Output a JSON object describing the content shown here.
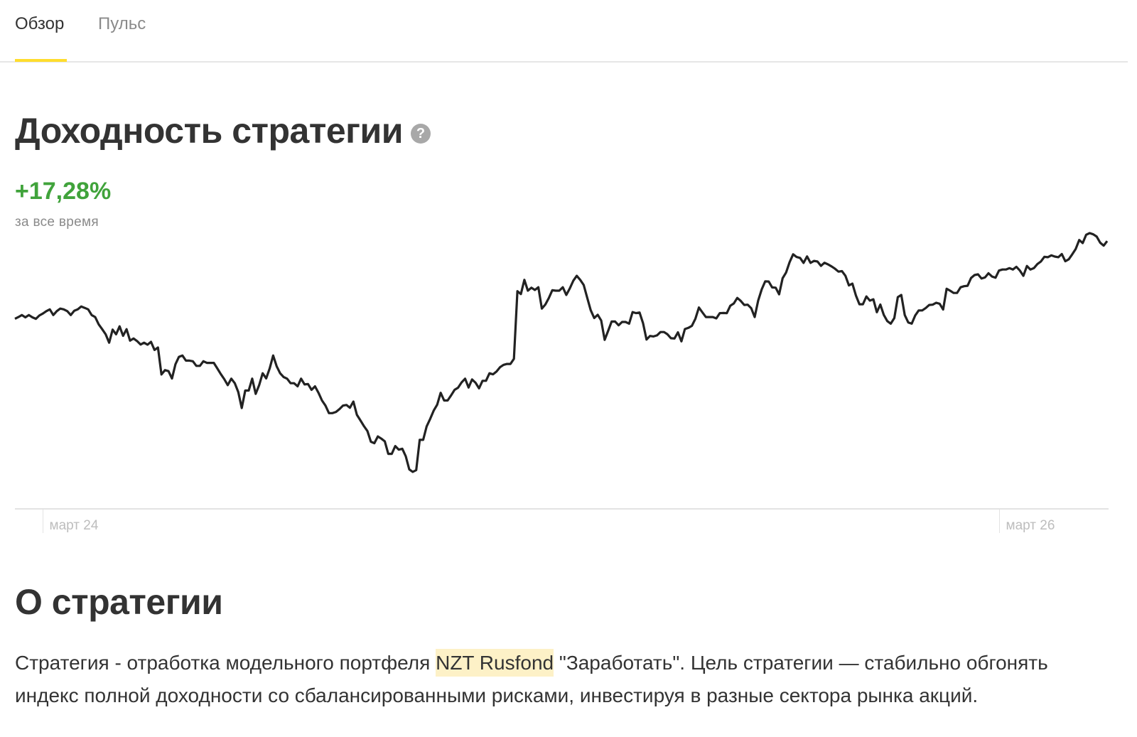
{
  "tabs": [
    {
      "label": "Обзор",
      "active": true
    },
    {
      "label": "Пульс",
      "active": false
    }
  ],
  "colors": {
    "accent_yellow": "#ffdd2d",
    "positive_green": "#40a33b",
    "highlight": "#fdf1c7",
    "text": "#333333",
    "muted": "#8a8a8a"
  },
  "returns": {
    "title": "Доходность стратегии",
    "help_icon": "question-circle-icon",
    "help_glyph": "?",
    "value": "+17,28%",
    "caption": "за все время"
  },
  "chart_data": {
    "type": "line",
    "title": "",
    "xlabel": "",
    "ylabel": "",
    "grid": false,
    "legend": "none",
    "x_tick_labels": [
      "март 24",
      "март 26"
    ],
    "x_ticks_at_index": [
      8,
      282
    ],
    "series": [
      {
        "color": "#222222",
        "values": [
          60.6,
          61.8,
          63.1,
          61.6,
          63.1,
          61.6,
          60.6,
          62.8,
          64.1,
          65.7,
          66.9,
          63.1,
          65.7,
          67.4,
          66.9,
          65.7,
          63.1,
          66.0,
          66.9,
          68.8,
          67.9,
          66.9,
          63.1,
          61.8,
          56.9,
          53.7,
          50.3,
          44.7,
          53.4,
          50.3,
          55.6,
          49.3,
          53.7,
          46.1,
          47.5,
          45.8,
          43.5,
          44.7,
          43.4,
          45.3,
          39.9,
          41.5,
          23.6,
          26.5,
          25.8,
          20.9,
          30.4,
          35.3,
          36.2,
          32.8,
          32.8,
          32.4,
          29.3,
          29.3,
          32.4,
          31.3,
          31.3,
          31.3,
          27.6,
          23.9,
          20.5,
          16.5,
          20.8,
          17.8,
          11.9,
          1.3,
          12.9,
          12.9,
          20.8,
          10.7,
          16.5,
          24.4,
          21.0,
          27.6,
          36.2,
          29.1,
          24.4,
          21.9,
          20.8,
          17.8,
          17.8,
          15.7,
          20.8,
          17.0,
          17.2,
          13.4,
          15.7,
          11.4,
          6.3,
          2.9,
          -2.1,
          -2.1,
          -1.3,
          0.6,
          2.9,
          3.3,
          1.5,
          5.6,
          -3.2,
          -6.9,
          -10.7,
          -14.0,
          -21.1,
          -22.1,
          -17.6,
          -19.1,
          -20.9,
          -29.2,
          -29.2,
          -24.0,
          -26.4,
          -25.8,
          -30.8,
          -39.5,
          -41.2,
          -40.0,
          -19.9,
          -19.9,
          -10.9,
          -5.9,
          -0.4,
          3.5,
          11.4,
          6.3,
          6.3,
          9.7,
          13.4,
          14.8,
          18.3,
          20.8,
          14.9,
          20.3,
          18.1,
          14.4,
          19.4,
          19.4,
          24.4,
          23.7,
          25.6,
          28.4,
          30.0,
          30.6,
          30.6,
          34.0,
          79.0,
          77.1,
          86.5,
          79.3,
          81.3,
          79.8,
          81.6,
          67.4,
          70.1,
          74.4,
          79.6,
          79.3,
          79.3,
          81.6,
          76.5,
          80.8,
          85.9,
          89.2,
          86.5,
          83.1,
          74.7,
          66.4,
          61.1,
          63.3,
          59.5,
          46.6,
          52.6,
          58.8,
          58.8,
          56.3,
          58.5,
          58.5,
          57.4,
          65.1,
          64.4,
          64.8,
          57.7,
          46.8,
          49.2,
          48.9,
          49.6,
          51.8,
          51.8,
          50.3,
          47.7,
          47.5,
          51.6,
          45.6,
          53.8,
          54.6,
          55.9,
          60.7,
          68.1,
          64.9,
          61.8,
          61.8,
          61.8,
          60.9,
          64.4,
          64.5,
          64.4,
          69.3,
          70.8,
          74.5,
          72.5,
          69.8,
          70.0,
          67.7,
          61.8,
          72.7,
          80.2,
          85.5,
          85.4,
          81.5,
          81.3,
          76.9,
          87.6,
          91.4,
          98.2,
          103.5,
          101.7,
          101.1,
          97.8,
          102.1,
          97.8,
          99.1,
          98.7,
          95.8,
          97.9,
          96.8,
          95.5,
          93.9,
          92.0,
          92.3,
          89.2,
          82.8,
          84.0,
          76.2,
          70.3,
          70.3,
          75.5,
          72.7,
          73.6,
          65.0,
          70.1,
          63.2,
          59.1,
          57.4,
          61.1,
          75.0,
          76.5,
          63.1,
          58.2,
          57.4,
          62.8,
          66.2,
          66.2,
          67.8,
          69.8,
          70.0,
          71.3,
          70.6,
          66.8,
          80.6,
          79.3,
          77.8,
          77.8,
          81.6,
          82.3,
          82.6,
          87.8,
          89.7,
          90.2,
          87.4,
          88.1,
          90.9,
          88.7,
          87.9,
          92.7,
          93.4,
          93.4,
          94.3,
          93.4,
          95.2,
          92.7,
          89.2,
          95.7,
          93.4,
          94.3,
          97.0,
          98.7,
          101.8,
          101.6,
          102.8,
          102.0,
          101.6,
          103.7,
          98.9,
          100.2,
          103.5,
          107.1,
          113.0,
          111.0,
          116.5,
          117.6,
          116.8,
          115.3,
          111.2,
          109.3,
          112.3
        ]
      }
    ]
  },
  "about": {
    "title": "О стратегии",
    "desc_before": "Стратегия - отработка модельного портфеля ",
    "desc_highlight": "NZT Rusfond",
    "desc_after": " \"Заработать\". Цель стратегии — стабильно обгонять индекс полной доходности со сбалансированными рисками, инвестируя в разные сектора рынка акций."
  }
}
